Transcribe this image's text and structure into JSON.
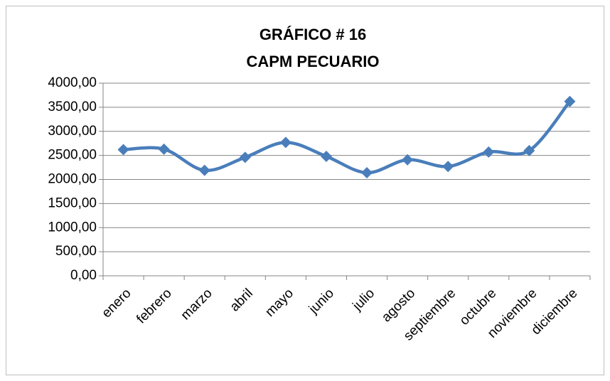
{
  "chart_data": {
    "type": "line",
    "title": "GRÁFICO # 16",
    "subtitle": "CAPM PECUARIO",
    "categories": [
      "enero",
      "febrero",
      "marzo",
      "abril",
      "mayo",
      "junio",
      "julio",
      "agosto",
      "septiembre",
      "octubre",
      "noviembre",
      "diciembre"
    ],
    "series": [
      {
        "name": "CAPM PECUARIO",
        "color": "#4a7ebb",
        "values": [
          2620,
          2630,
          2190,
          2460,
          2770,
          2480,
          2140,
          2410,
          2270,
          2570,
          2600,
          3620
        ]
      }
    ],
    "ylim": [
      0,
      4000
    ],
    "yticks": [
      {
        "value": 0,
        "label": "0,00"
      },
      {
        "value": 500,
        "label": "500,00"
      },
      {
        "value": 1000,
        "label": "1000,00"
      },
      {
        "value": 1500,
        "label": "1500,00"
      },
      {
        "value": 2000,
        "label": "2000,00"
      },
      {
        "value": 2500,
        "label": "2500,00"
      },
      {
        "value": 3000,
        "label": "3000,00"
      },
      {
        "value": 3500,
        "label": "3500,00"
      },
      {
        "value": 4000,
        "label": "4000,00"
      }
    ],
    "grid": true,
    "smooth": true
  }
}
